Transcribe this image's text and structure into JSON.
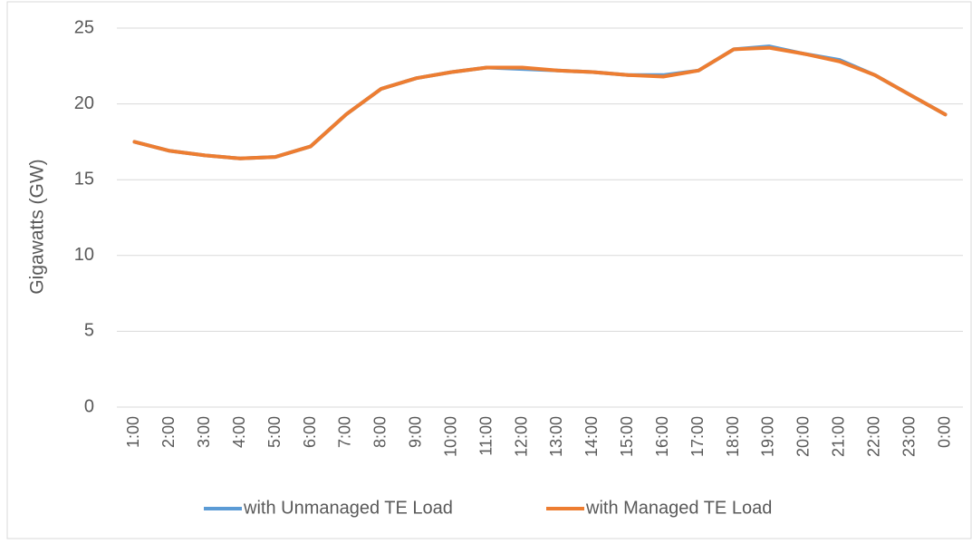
{
  "chart_data": {
    "type": "line",
    "y_label": "Gigawatts (GW)",
    "categories": [
      "1:00",
      "2:00",
      "3:00",
      "4:00",
      "5:00",
      "6:00",
      "7:00",
      "8:00",
      "9:00",
      "10:00",
      "11:00",
      "12:00",
      "13:00",
      "14:00",
      "15:00",
      "16:00",
      "17:00",
      "18:00",
      "19:00",
      "20:00",
      "21:00",
      "22:00",
      "23:00",
      "0:00"
    ],
    "series": [
      {
        "name": "with Unmanaged TE Load",
        "color": "#5b9bd5",
        "values": [
          17.5,
          16.9,
          16.6,
          16.4,
          16.5,
          17.2,
          19.3,
          21.0,
          21.7,
          22.1,
          22.4,
          22.3,
          22.2,
          22.1,
          21.9,
          21.9,
          22.2,
          23.6,
          23.8,
          23.3,
          22.9,
          21.9,
          20.6,
          19.3
        ]
      },
      {
        "name": "with Managed TE Load",
        "color": "#ed7d31",
        "values": [
          17.5,
          16.9,
          16.6,
          16.4,
          16.5,
          17.2,
          19.3,
          21.0,
          21.7,
          22.1,
          22.4,
          22.4,
          22.2,
          22.1,
          21.9,
          21.8,
          22.2,
          23.6,
          23.7,
          23.3,
          22.8,
          21.9,
          20.6,
          19.3
        ]
      }
    ],
    "ylim": [
      0,
      25
    ],
    "yticks": [
      0,
      5,
      10,
      15,
      20,
      25
    ],
    "grid": true,
    "legend": "bottom"
  }
}
